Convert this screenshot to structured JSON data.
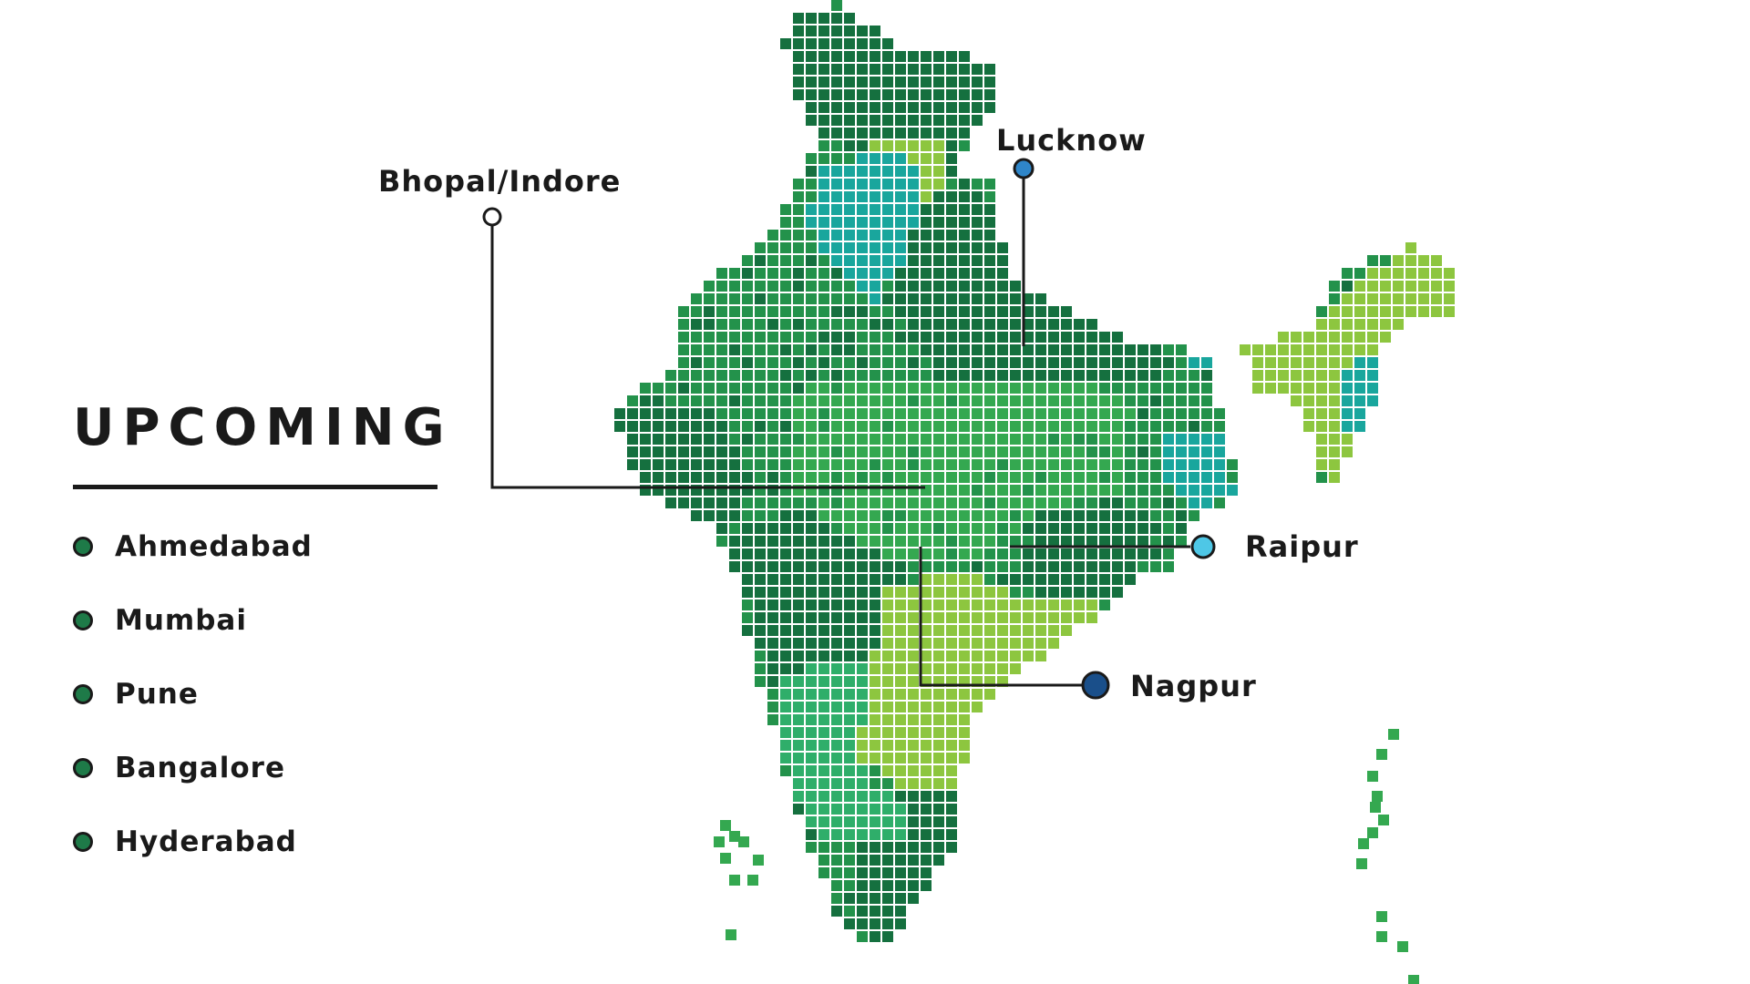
{
  "legend": {
    "title": "UPCOMING",
    "dot_color": "#1e7a48",
    "items": [
      {
        "label": "Ahmedabad"
      },
      {
        "label": "Mumbai"
      },
      {
        "label": "Pune"
      },
      {
        "label": "Bangalore"
      },
      {
        "label": "Hyderabad"
      }
    ]
  },
  "callouts": [
    {
      "label": "Bhopal/Indore",
      "marker_color": "#ffffff"
    },
    {
      "label": "Lucknow",
      "marker_color": "#2f86c9"
    },
    {
      "label": "Raipur",
      "marker_color": "#4ec7e6"
    },
    {
      "label": "Nagpur",
      "marker_color": "#1a4f8a"
    }
  ],
  "map": {
    "region": "India",
    "style": "pixel-grid",
    "palette": {
      "dark_green": "#15703f",
      "green": "#23924b",
      "mid_green": "#34a850",
      "light_green": "#8dc63f",
      "teal": "#19a69d",
      "medium_sea": "#2fae6a"
    }
  }
}
